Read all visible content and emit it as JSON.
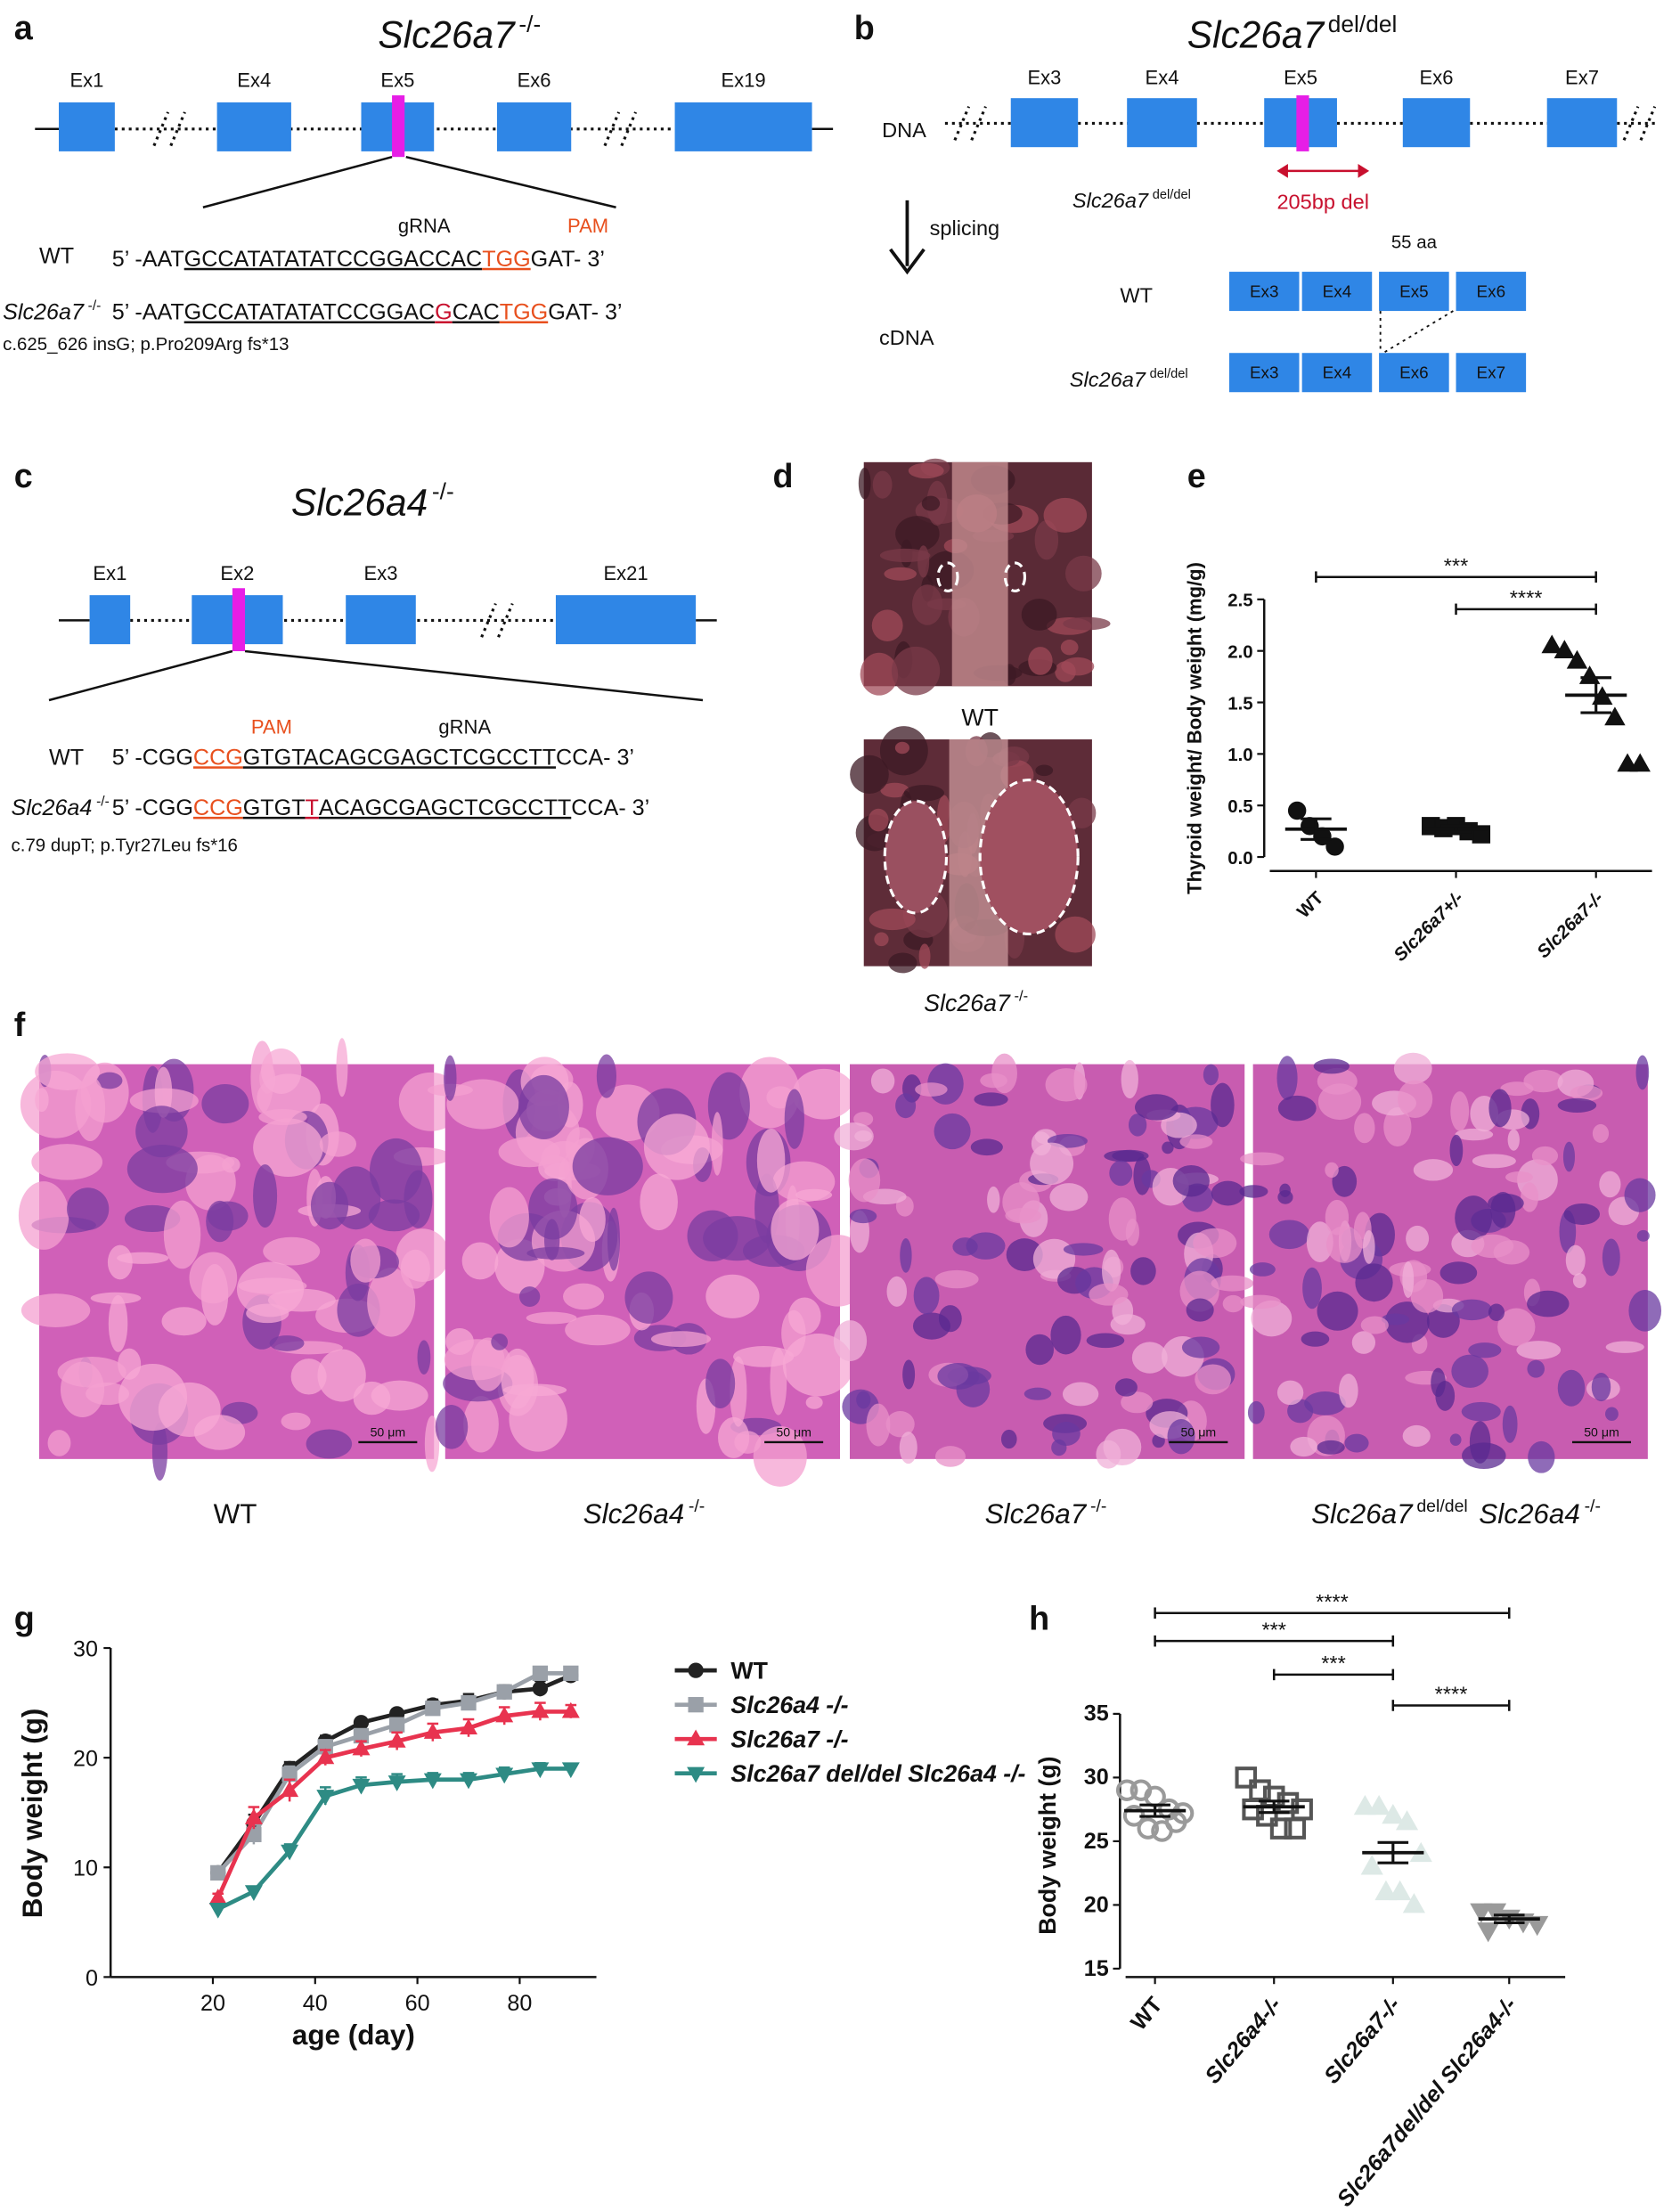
{
  "panel_labels": [
    "a",
    "b",
    "c",
    "d",
    "e",
    "f",
    "g",
    "h"
  ],
  "a": {
    "title": [
      "Slc26a7",
      "-/-"
    ],
    "exons": [
      "Ex1",
      "Ex4",
      "Ex5",
      "Ex6",
      "Ex19"
    ],
    "grna": "gRNA",
    "pam": "PAM",
    "wt": [
      "WT"
    ],
    "mutant": [
      "Slc26a7",
      "-/-"
    ],
    "wt_seq": [
      "5’ -AAT",
      "GCCATATATATCCGGACCAC",
      "TGG",
      "GAT- 3’"
    ],
    "mut_seq": [
      "5’ -AAT",
      "GCCATATATATCCGGAC",
      "G",
      "CAC",
      "TGG",
      "GAT- 3’"
    ],
    "note": "c.625_626 insG; p.Pro209Arg fs*13"
  },
  "b": {
    "title": [
      "Slc26a7",
      "del/del"
    ],
    "dna": "DNA",
    "exons": [
      "Ex3",
      "Ex4",
      "Ex5",
      "Ex6",
      "Ex7"
    ],
    "del_label": [
      "Slc26a7",
      "del/del"
    ],
    "deletion": "205bp del",
    "splicing": "splicing",
    "cdna": "cDNA",
    "aa": "55 aa",
    "wt": [
      "WT"
    ],
    "wt_exons": [
      "Ex3",
      "Ex4",
      "Ex5",
      "Ex6"
    ],
    "mutant": [
      "Slc26a7",
      "del/del"
    ],
    "mut_exons": [
      "Ex3",
      "Ex4",
      "Ex6",
      "Ex7"
    ]
  },
  "c": {
    "title": [
      "Slc26a4",
      "-/-"
    ],
    "exons": [
      "Ex1",
      "Ex2",
      "Ex3",
      "Ex21"
    ],
    "pam": "PAM",
    "grna": "gRNA",
    "wt": [
      "WT"
    ],
    "mutant": [
      "Slc26a4",
      "-/-"
    ],
    "wt_seq": [
      "5’ -CGG",
      "CCG",
      "GTGTACAGCGAGCTCGCCTT",
      "CCA- 3’"
    ],
    "mut_seq": [
      "5’ -CGG",
      "CCG",
      "GTGT",
      "T",
      "ACAGCGAGCTCGCCTT",
      "CCA- 3’"
    ],
    "note": "c.79 dupT; p.Tyr27Leu fs*16"
  },
  "d": {
    "wt": [
      "WT"
    ],
    "mutant": [
      "Slc26a7",
      "-/-"
    ]
  },
  "f": {
    "labels": [
      [
        "WT"
      ],
      [
        "Slc26a4",
        "-/-"
      ],
      [
        "Slc26a7",
        "-/-"
      ],
      [
        "Slc26a7",
        "del/del",
        "Slc26a4",
        "-/-"
      ]
    ],
    "scale_bar": "50 μm"
  },
  "chart_data": [
    {
      "type": "dot",
      "ylabel": "Thyroid weight/ Body weight (mg/g)",
      "categories": [
        "WT",
        "Slc26a7+/-",
        "Slc26a7-/-"
      ],
      "markers": [
        "circle",
        "square",
        "triangle"
      ],
      "color": "#111111",
      "values": [
        [
          0.45,
          0.3,
          0.2,
          0.1
        ],
        [
          0.3,
          0.28,
          0.3,
          0.25,
          0.22
        ],
        [
          2.05,
          2.0,
          1.9,
          1.75,
          1.55,
          1.35,
          0.9,
          0.9
        ]
      ],
      "means": [
        0.27,
        0.27,
        1.57
      ],
      "sems": [
        0.1,
        0.03,
        0.17
      ],
      "significance": [
        "***",
        "****"
      ],
      "ylim": [
        0,
        2.5
      ],
      "yticks": [
        {
          "value": 0,
          "label": "0.0"
        },
        0.5,
        {
          "value": 1,
          "label": "1.0"
        },
        1.5,
        {
          "value": 2,
          "label": "2.0"
        },
        2.5
      ]
    },
    {
      "type": "line",
      "ylabel": "Body weight (g)",
      "xlabel": "age (day)",
      "x": [
        21,
        28,
        35,
        42,
        49,
        56,
        63,
        70,
        77,
        84,
        90
      ],
      "xlim": [
        0,
        95
      ],
      "xticks": [
        20,
        40,
        60,
        80
      ],
      "ylim": [
        0,
        30
      ],
      "yticks": [
        0,
        10,
        20,
        30
      ],
      "series": [
        {
          "name": "WT",
          "color": "#222222",
          "marker": "circle",
          "values": [
            9.5,
            14,
            19,
            21.5,
            23.2,
            24,
            24.8,
            25.2,
            26,
            26.3,
            27.5
          ],
          "errors": [
            0.5,
            0.8,
            0.6,
            0.5,
            0.4,
            0.4,
            0.5,
            0.6,
            0.6,
            0.7,
            0.3
          ]
        },
        {
          "name": "Slc26a4 -/-",
          "color": "#9aa0a8",
          "marker": "square",
          "values": [
            9.5,
            13,
            18.5,
            21,
            22,
            23,
            24.5,
            25,
            26,
            27.7,
            27.7
          ],
          "errors": [
            0.5,
            0.9,
            0.7,
            0.6,
            0.6,
            0.6,
            0.6,
            0.6,
            0.5,
            0.4,
            0.4
          ]
        },
        {
          "name": "Slc26a7 -/-",
          "color": "#e8334f",
          "marker": "triangle",
          "values": [
            7.2,
            14.5,
            17,
            20,
            20.8,
            21.5,
            22.3,
            22.7,
            23.8,
            24.2,
            24.2
          ],
          "errors": [
            0.4,
            1.0,
            1.0,
            0.7,
            0.7,
            0.8,
            0.8,
            0.8,
            0.8,
            0.8,
            0.6
          ]
        },
        {
          "name": "Slc26a7 del/del Slc26a4 -/-",
          "color": "#2e8b84",
          "marker": "triangle-down",
          "values": [
            6.2,
            7.8,
            11.5,
            16.5,
            17.5,
            17.8,
            18,
            18,
            18.5,
            19,
            19
          ],
          "errors": [
            0.3,
            0.4,
            0.6,
            0.8,
            0.7,
            0.7,
            0.6,
            0.6,
            0.6,
            0.5,
            0.4
          ]
        }
      ]
    },
    {
      "type": "dot",
      "ylabel": "Body weight (g)",
      "categories": [
        "WT",
        "Slc26a4-/-",
        "Slc26a7-/-",
        "Slc26a7del/del Slc26a4-/-"
      ],
      "markers": [
        "circle-open",
        "square-open",
        "triangle",
        "triangle-down"
      ],
      "colors": [
        "#9a9a9a",
        "#555555",
        "#dde9e6",
        "#9a9a9a"
      ],
      "values": [
        [
          29,
          29,
          28.5,
          27.5,
          27.2,
          27,
          26,
          25.8,
          26.5
        ],
        [
          30,
          29,
          28.5,
          28,
          27.5,
          27.5,
          27,
          26,
          26
        ],
        [
          27.7,
          27.7,
          27,
          26.5,
          24,
          23,
          21,
          21,
          20
        ],
        [
          19.5,
          19.5,
          19,
          18.7,
          18.5,
          18
        ]
      ],
      "means": [
        27.4,
        27.7,
        24.1,
        18.9
      ],
      "sems": [
        0.45,
        0.45,
        0.8,
        0.3
      ],
      "significance": [
        "****",
        "***",
        "***",
        "****"
      ],
      "ylim": [
        15,
        35
      ],
      "yticks": [
        15,
        20,
        25,
        30,
        35
      ]
    }
  ]
}
